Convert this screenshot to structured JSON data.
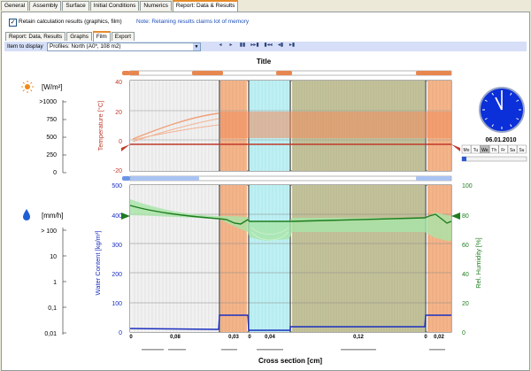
{
  "tabs": [
    {
      "label": "General"
    },
    {
      "label": "Assembly"
    },
    {
      "label": "Surface"
    },
    {
      "label": "Initial Conditions"
    },
    {
      "label": "Numerics"
    },
    {
      "label": "Report: Data & Results"
    }
  ],
  "retain": {
    "label": "Retain calculation results (graphics, film)",
    "note": "Note: Retaining results claims lot of memory"
  },
  "subtabs": [
    {
      "label": "Report: Data, Results"
    },
    {
      "label": "Graphs"
    },
    {
      "label": "Film"
    },
    {
      "label": "Export"
    }
  ],
  "item_label": "Item to display",
  "item_value": "Profiles: North (A0*, 108 m2)",
  "player": [
    "◂",
    "▸",
    "▮▮",
    "▸▸▮",
    "▮◂◂",
    "◂▮",
    "▸▮"
  ],
  "film": {
    "title": "Title",
    "radiation": {
      "unit": "[W/m²]",
      "ticks": [
        ">1000",
        "750",
        "500",
        "250",
        "0"
      ]
    },
    "precip": {
      "unit": "[mm/h]",
      "ticks": [
        "> 100",
        "10",
        "1",
        "0,1",
        "0,01"
      ]
    },
    "temp_axis": {
      "label": "Temperature [°C]",
      "ticks": [
        "40",
        "20",
        "0",
        "-20"
      ]
    },
    "water_axis": {
      "label": "Water Content [kg/m³]",
      "ticks": [
        "500",
        "400",
        "300",
        "200",
        "100",
        "0"
      ]
    },
    "rh_axis": {
      "label": "Rel. Humidity [%]",
      "ticks": [
        "100",
        "80",
        "60",
        "40",
        "20",
        "0"
      ]
    },
    "x_axis": {
      "label": "Cross section [cm]",
      "ticks": [
        "0",
        "0,08",
        "0,03",
        "0",
        "0,04",
        "0,12",
        "0",
        "0,02"
      ]
    },
    "date": "06.01.2010",
    "weekdays": [
      "Mo",
      "Tu",
      "We",
      "Th",
      "Fr",
      "Sa",
      "Su"
    ],
    "active_day": "We",
    "colors": {
      "temp": "#c0392b",
      "water": "#1a2fbf",
      "rh": "#1e7d1e",
      "orange": "#f3b58b",
      "cyan": "#bff0f3",
      "olive": "#c4c39c"
    }
  }
}
